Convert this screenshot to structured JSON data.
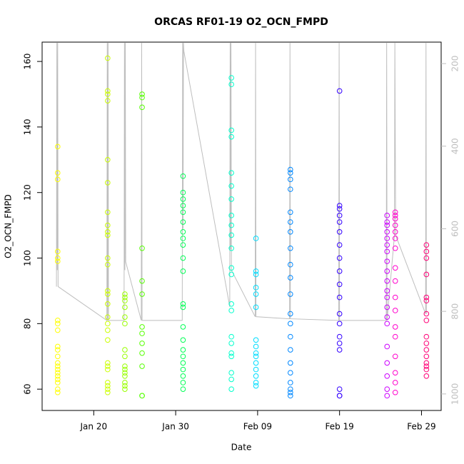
{
  "chart_data": {
    "type": "scatter",
    "title": "ORCAS RF01-19 O2_OCN_FMPD",
    "x_label": "Date",
    "y_label": "O2_OCN_FMPD",
    "xlim": [
      13.7,
      62.4
    ],
    "xticks": [
      {
        "value": 20,
        "label": "Jan 20"
      },
      {
        "value": 30,
        "label": "Jan 30"
      },
      {
        "value": 40,
        "label": "Feb 09"
      },
      {
        "value": 50,
        "label": "Feb 19"
      },
      {
        "value": 60,
        "label": "Feb 29"
      }
    ],
    "ylim": [
      53.5,
      165.9
    ],
    "yticks": [
      60,
      80,
      100,
      120,
      140,
      160
    ],
    "y2lim": [
      1040,
      148
    ],
    "y2ticks": [
      200,
      400,
      600,
      800,
      1000
    ],
    "y2_color": "#bebebe",
    "series": [
      {
        "color": "#ffff00",
        "x": 15.6,
        "values": [
          59,
          60,
          62,
          63,
          64,
          65,
          66,
          67,
          68,
          70,
          72,
          73,
          78,
          80,
          81,
          99,
          100,
          102,
          124,
          126,
          134
        ]
      },
      {
        "color": "#ccff00",
        "x": 21.7,
        "values": [
          59,
          60,
          61,
          62,
          66,
          67,
          68,
          75,
          78,
          80,
          82,
          86,
          89,
          90,
          98,
          100,
          107,
          108,
          110,
          114,
          123,
          130,
          148,
          150,
          151,
          161
        ]
      },
      {
        "color": "#99ff00",
        "x": 23.8,
        "values": [
          60,
          61,
          62,
          64,
          65,
          66,
          67,
          70,
          72,
          80,
          82,
          85,
          87,
          88,
          89
        ]
      },
      {
        "color": "#55ff00",
        "x": 25.9,
        "values": [
          58,
          58,
          67,
          71,
          74,
          77,
          79,
          89,
          93,
          103,
          146,
          149,
          150
        ]
      },
      {
        "color": "#00ff55",
        "x": 30.9,
        "values": [
          60,
          62,
          64,
          66,
          68,
          70,
          72,
          75,
          79,
          85,
          86,
          96,
          100,
          104,
          106,
          108,
          111,
          114,
          116,
          118,
          120,
          125
        ]
      },
      {
        "color": "#00ffcc",
        "x": 36.8,
        "values": [
          60,
          63,
          65,
          70,
          71,
          74,
          76,
          84,
          86,
          95,
          97,
          103,
          107,
          110,
          113,
          118,
          122,
          126,
          137,
          139,
          153,
          155
        ]
      },
      {
        "color": "#00ddff",
        "x": 39.8,
        "values": [
          61,
          62,
          64,
          66,
          68,
          70,
          71,
          73,
          75,
          85,
          89,
          91,
          95,
          96,
          106
        ]
      },
      {
        "color": "#0088ff",
        "x": 44.0,
        "values": [
          58,
          59,
          60,
          62,
          65,
          68,
          72,
          76,
          80,
          83,
          89,
          94,
          98,
          103,
          108,
          111,
          114,
          121,
          124,
          126,
          127
        ]
      },
      {
        "color": "#3300ff",
        "x": 50.0,
        "values": [
          58,
          58,
          60,
          72,
          74,
          76,
          80,
          83,
          88,
          92,
          96,
          100,
          104,
          108,
          111,
          113,
          115,
          116,
          151
        ]
      },
      {
        "color": "#cc00ff",
        "x": 55.8,
        "values": [
          58,
          60,
          64,
          68,
          73,
          80,
          82,
          85,
          88,
          90,
          93,
          96,
          99,
          102,
          104,
          106,
          108,
          110,
          111,
          113
        ]
      },
      {
        "color": "#ff00cc",
        "x": 56.8,
        "values": [
          59,
          62,
          65,
          70,
          76,
          79,
          84,
          88,
          93,
          97,
          103,
          106,
          108,
          110,
          112,
          113,
          114
        ]
      },
      {
        "color": "#ff0077",
        "x": 60.6,
        "values": [
          64,
          66,
          67,
          68,
          70,
          72,
          74,
          76,
          81,
          83,
          87,
          88,
          95,
          100,
          102,
          104
        ]
      },
      {
        "type": "line",
        "axis": "y2",
        "color": "#bebebe",
        "x": [
          15.45,
          15.5,
          15.55,
          15.6,
          15.65,
          21.6,
          21.65,
          21.7,
          21.75,
          21.8,
          23.7,
          23.75,
          23.8,
          23.85,
          23.9,
          25.8,
          25.85,
          25.9,
          30.8,
          30.85,
          30.9,
          30.95,
          31.0,
          36.6,
          36.65,
          36.7,
          36.75,
          36.8,
          39.7,
          39.75,
          39.8,
          43.9,
          43.95,
          44.0,
          49.9,
          49.95,
          50.0,
          55.7,
          55.75,
          55.8,
          56.7,
          56.75,
          56.85,
          60.5,
          60.55,
          60.6
        ],
        "values": [
          740,
          150,
          700,
          150,
          740,
          822,
          150,
          822,
          150,
          822,
          822,
          150,
          700,
          150,
          680,
          822,
          150,
          822,
          822,
          150,
          600,
          150,
          170,
          789,
          150,
          650,
          150,
          700,
          813,
          150,
          813,
          818,
          150,
          818,
          822,
          150,
          822,
          822,
          150,
          822,
          616,
          150,
          616,
          806,
          150,
          806
        ]
      }
    ]
  }
}
